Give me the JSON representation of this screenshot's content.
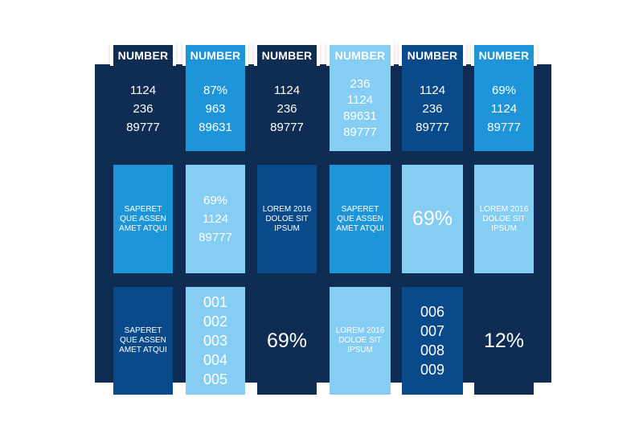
{
  "colors": {
    "panel": "#0f2d52",
    "navy": "#0f2d52",
    "dark_blue": "#0a4a8a",
    "mid_blue": "#1e95d8",
    "light_blue": "#85cdf3"
  },
  "headers": [
    "NUMBER",
    "NUMBER",
    "NUMBER",
    "NUMBER",
    "NUMBER",
    "NUMBER"
  ],
  "row1": [
    {
      "lines": [
        "1124",
        "236",
        "89777"
      ]
    },
    {
      "lines": [
        "87%",
        "963",
        "89631"
      ]
    },
    {
      "lines": [
        "1124",
        "236",
        "89777"
      ]
    },
    {
      "lines": [
        "236",
        "1124",
        "89631",
        "89777"
      ]
    },
    {
      "lines": [
        "1124",
        "236",
        "89777"
      ]
    },
    {
      "lines": [
        "69%",
        "1124",
        "89777"
      ]
    }
  ],
  "row2": [
    {
      "lines": [
        "SAPERET",
        "QUE ASSEN",
        "AMET ATQUI"
      ]
    },
    {
      "lines": [
        "69%",
        "1124",
        "89777"
      ]
    },
    {
      "lines": [
        "LOREM 2016",
        "DOLOE SIT",
        "IPSUM"
      ]
    },
    {
      "lines": [
        "SAPERET",
        "QUE ASSEN",
        "AMET ATQUI"
      ]
    },
    {
      "value": "69%"
    },
    {
      "lines": [
        "LOREM 2016",
        "DOLOE SIT",
        "IPSUM"
      ]
    }
  ],
  "row3": [
    {
      "lines": [
        "SAPERET",
        "QUE ASSEN",
        "AMET ATQUI"
      ]
    },
    {
      "lines": [
        "001",
        "002",
        "003",
        "004",
        "005"
      ]
    },
    {
      "value": "69%"
    },
    {
      "lines": [
        "LOREM 2016",
        "DOLOE SIT",
        "IPSUM"
      ]
    },
    {
      "lines": [
        "006",
        "007",
        "008",
        "009"
      ]
    },
    {
      "value": "12%"
    }
  ]
}
